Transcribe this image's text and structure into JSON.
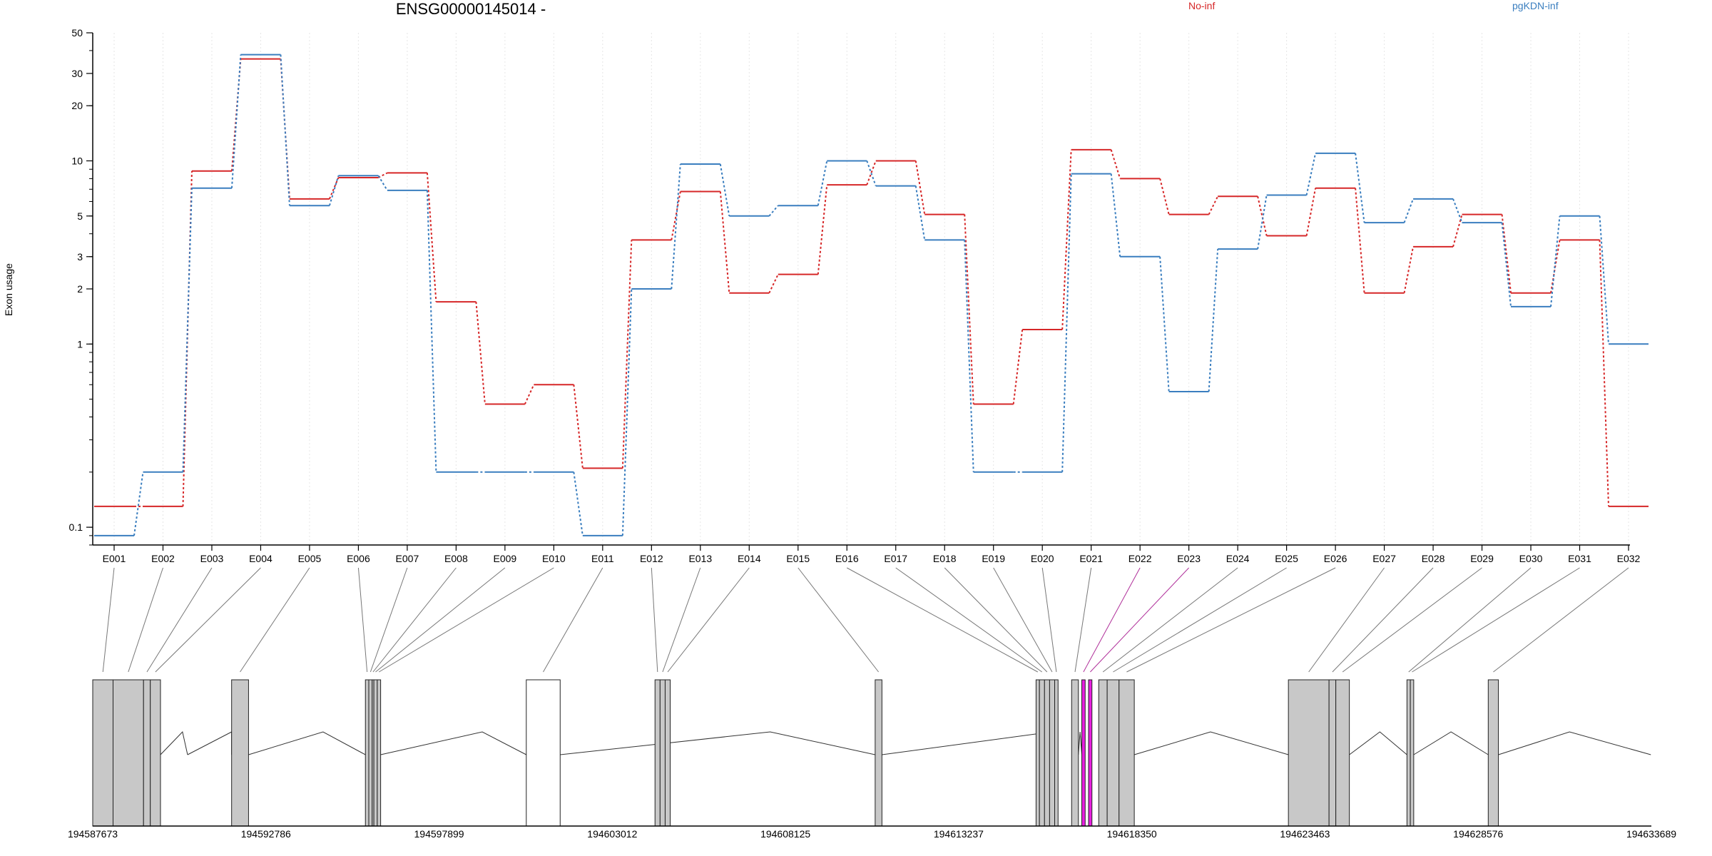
{
  "chart_data": {
    "type": "line",
    "title": "ENSG00000145014 -",
    "ylabel": "Exon usage",
    "yscale": "log",
    "ylim": [
      0.08,
      50
    ],
    "yticks": [
      {
        "v": 0.1,
        "label": "0.1"
      },
      {
        "v": 1,
        "label": "1"
      },
      {
        "v": 2,
        "label": "2"
      },
      {
        "v": 3,
        "label": "3"
      },
      {
        "v": 5,
        "label": "5"
      },
      {
        "v": 10,
        "label": "10"
      },
      {
        "v": 20,
        "label": "20"
      },
      {
        "v": 30,
        "label": "30"
      },
      {
        "v": 50,
        "label": "50"
      }
    ],
    "categories": [
      "E001",
      "E002",
      "E003",
      "E004",
      "E005",
      "E006",
      "E007",
      "E008",
      "E009",
      "E010",
      "E011",
      "E012",
      "E013",
      "E014",
      "E015",
      "E016",
      "E017",
      "E018",
      "E019",
      "E020",
      "E021",
      "E022",
      "E023",
      "E024",
      "E025",
      "E026",
      "E027",
      "E028",
      "E029",
      "E030",
      "E031",
      "E032"
    ],
    "series": [
      {
        "name": "No-inf",
        "color": "#d62728",
        "values": [
          0.13,
          0.13,
          8.8,
          36,
          6.2,
          8.1,
          8.6,
          1.7,
          0.47,
          0.6,
          0.21,
          3.7,
          6.8,
          1.9,
          2.4,
          7.4,
          10,
          5.1,
          0.47,
          1.2,
          11.5,
          8,
          5.1,
          6.4,
          3.9,
          7.1,
          1.9,
          3.4,
          5.1,
          1.9,
          3.7,
          0.13
        ]
      },
      {
        "name": "pgKDN-inf",
        "color": "#3a7ebf",
        "values": [
          0.09,
          0.2,
          7.1,
          38,
          5.7,
          8.3,
          6.9,
          0.2,
          0.2,
          0.2,
          0.09,
          2,
          9.6,
          5,
          5.7,
          10,
          7.3,
          3.7,
          0.2,
          0.2,
          8.5,
          3,
          0.55,
          3.3,
          6.5,
          11,
          4.6,
          6.2,
          4.6,
          1.6,
          5,
          1
        ]
      }
    ],
    "gene_model": {
      "coord_start": 194587673,
      "coord_end": 194633689,
      "coord_labels": [
        "194587673",
        "194592786",
        "194597899",
        "194603012",
        "194608125",
        "194613237",
        "194618350",
        "194623463",
        "194628576",
        "194633689"
      ],
      "highlight_color": "#e81fe0",
      "highlight_exons": [
        "E022",
        "E023"
      ]
    }
  }
}
